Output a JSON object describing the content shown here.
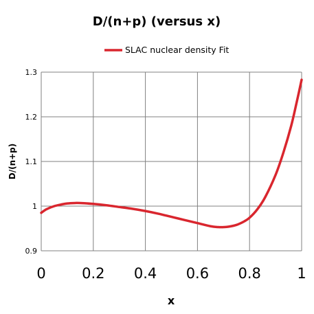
{
  "chart_data": {
    "type": "line",
    "title": "D/(n+p) (versus x)",
    "xlabel": "x",
    "ylabel": "D/(n+p)",
    "xlim": [
      0,
      1
    ],
    "ylim": [
      0.9,
      1.3
    ],
    "x_ticks": [
      "0",
      "0.2",
      "0.4",
      "0.6",
      "0.8",
      "1"
    ],
    "y_ticks": [
      "0.9",
      "1",
      "1.1",
      "1.2",
      "1.3"
    ],
    "grid": true,
    "legend_position": "top-right",
    "series": [
      {
        "name": "SLAC nuclear density Fit",
        "color": "#d9262e",
        "x": [
          0,
          0.02,
          0.05,
          0.08,
          0.1,
          0.13,
          0.15,
          0.2,
          0.25,
          0.3,
          0.35,
          0.4,
          0.45,
          0.5,
          0.55,
          0.6,
          0.65,
          0.68,
          0.7,
          0.72,
          0.75,
          0.78,
          0.8,
          0.83,
          0.86,
          0.9,
          0.93,
          0.96,
          0.98,
          1.0
        ],
        "y": [
          0.985,
          0.993,
          1.0,
          1.004,
          1.006,
          1.007,
          1.007,
          1.005,
          1.002,
          0.998,
          0.994,
          0.989,
          0.983,
          0.976,
          0.969,
          0.962,
          0.955,
          0.953,
          0.953,
          0.954,
          0.958,
          0.966,
          0.974,
          0.993,
          1.02,
          1.07,
          1.12,
          1.18,
          1.23,
          1.283
        ]
      }
    ]
  }
}
